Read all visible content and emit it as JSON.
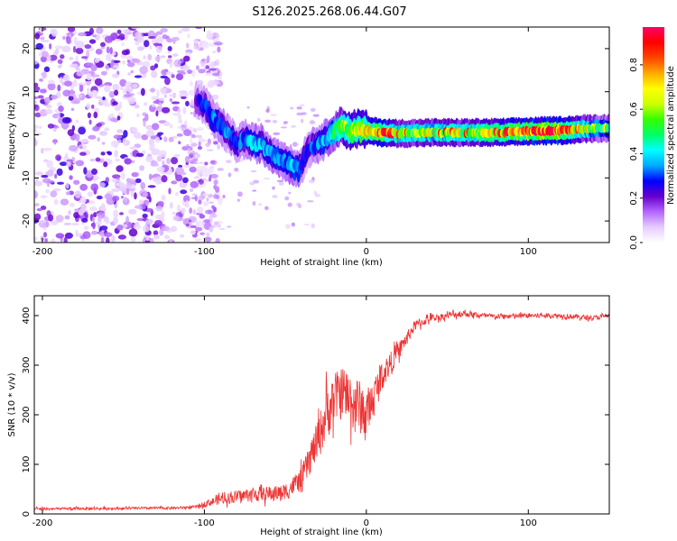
{
  "title": "S126.2025.268.06.44.G07",
  "colorbar": {
    "label": "Normalized spectral amplitude",
    "ticks": [
      "0.0",
      "0.2",
      "0.4",
      "0.6",
      "0.8"
    ],
    "tick_values": [
      0.0,
      0.2,
      0.4,
      0.6,
      0.8
    ],
    "range": [
      0,
      0.97
    ],
    "colors": [
      "#ffffff",
      "#e6ccff",
      "#b366ff",
      "#6600cc",
      "#0000ff",
      "#00aaff",
      "#00ffff",
      "#00ff66",
      "#33ff00",
      "#ccff00",
      "#ffff00",
      "#ffaa00",
      "#ff4400",
      "#ff0000",
      "#ff0066"
    ]
  },
  "chart_data": [
    {
      "type": "heatmap",
      "title": "S126.2025.268.06.44.G07",
      "xlabel": "Height of straight line (km)",
      "ylabel": "Frequency (Hz)",
      "xlim": [
        -205,
        150
      ],
      "ylim": [
        -25,
        25
      ],
      "xticks": [
        -200,
        -100,
        0,
        100
      ],
      "xtick_labels": [
        "-200",
        "-100",
        "0",
        "100"
      ],
      "yticks": [
        -20,
        -10,
        0,
        10,
        20
      ],
      "ytick_labels": [
        "-20",
        "-10",
        "0",
        "10",
        "20"
      ],
      "ridge": {
        "x": [
          -105,
          -100,
          -95,
          -90,
          -85,
          -80,
          -75,
          -70,
          -65,
          -60,
          -55,
          -50,
          -45,
          -42,
          -40,
          -38,
          -35,
          -30,
          -25,
          -20,
          -15,
          -10,
          -5,
          0,
          10,
          20,
          40,
          60,
          80,
          100,
          120,
          140,
          150
        ],
        "freq": [
          8,
          7,
          4,
          2,
          0,
          -2,
          -1,
          -2,
          -2,
          -4,
          -5,
          -6,
          -7.5,
          -8,
          -7,
          -5,
          -3,
          -2,
          -1,
          1,
          2,
          1,
          1.5,
          1,
          0.5,
          0.3,
          0.5,
          0.5,
          0.5,
          0.8,
          1,
          1.5,
          1.5
        ],
        "amplitude": [
          0.25,
          0.3,
          0.35,
          0.35,
          0.35,
          0.3,
          0.35,
          0.4,
          0.4,
          0.35,
          0.4,
          0.35,
          0.4,
          0.4,
          0.3,
          0.3,
          0.3,
          0.35,
          0.4,
          0.5,
          0.6,
          0.65,
          0.7,
          0.75,
          0.8,
          0.6,
          0.6,
          0.6,
          0.7,
          0.8,
          0.85,
          0.5,
          0.45
        ]
      },
      "noise_region": {
        "x_range": [
          -205,
          -105
        ],
        "freq_range": [
          -25,
          25
        ],
        "amplitude_range": [
          0.05,
          0.25
        ]
      }
    },
    {
      "type": "line",
      "xlabel": "Height of straight line (km)",
      "ylabel": "SNR (10 * v/v)",
      "xlim": [
        -205,
        150
      ],
      "ylim": [
        0,
        440
      ],
      "xticks": [
        -200,
        -100,
        0,
        100
      ],
      "xtick_labels": [
        "-200",
        "-100",
        "0",
        "100"
      ],
      "yticks": [
        0,
        100,
        200,
        300,
        400
      ],
      "ytick_labels": [
        "0",
        "100",
        "200",
        "300",
        "400"
      ],
      "series": [
        {
          "name": "SNR",
          "color": "#ee3333",
          "envelope_x": [
            -205,
            -120,
            -105,
            -100,
            -90,
            -80,
            -70,
            -60,
            -50,
            -40,
            -35,
            -30,
            -25,
            -20,
            -15,
            -10,
            -5,
            0,
            10,
            20,
            30,
            40,
            50,
            60,
            70,
            80,
            100,
            120,
            140,
            150
          ],
          "envelope_mean": [
            10,
            12,
            14,
            20,
            30,
            35,
            40,
            40,
            45,
            70,
            110,
            150,
            200,
            230,
            250,
            230,
            220,
            200,
            280,
            330,
            380,
            395,
            400,
            405,
            400,
            398,
            400,
            400,
            395,
            400
          ],
          "envelope_spread": [
            6,
            6,
            7,
            15,
            25,
            30,
            35,
            35,
            40,
            60,
            80,
            100,
            130,
            130,
            130,
            140,
            140,
            120,
            70,
            40,
            25,
            18,
            15,
            18,
            14,
            12,
            12,
            12,
            12,
            12
          ]
        }
      ]
    }
  ]
}
